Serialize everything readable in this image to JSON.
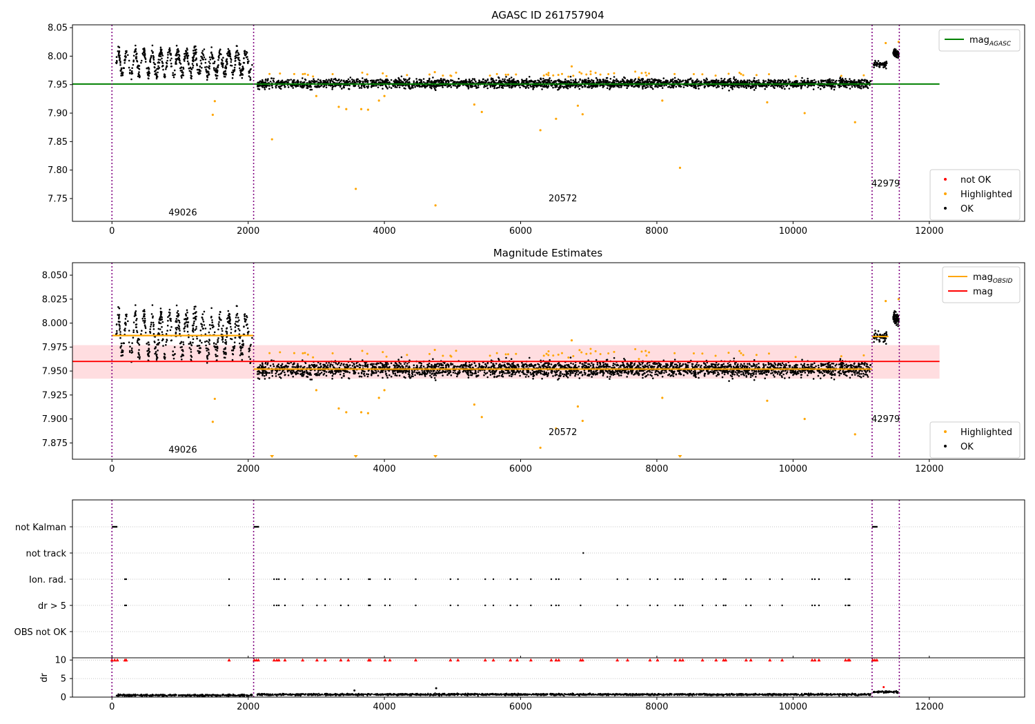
{
  "figure": {
    "background": "#ffffff"
  },
  "colors": {
    "ok": "#000000",
    "highlighted": "#ffa500",
    "not_ok": "#ff0000",
    "agasc_line": "#008000",
    "obsid_line": "#ffa500",
    "mean_line": "#ff0000",
    "band_fill": "#ffdde0",
    "obsid_divider": "#800080",
    "grid": "#b0b0b0"
  },
  "x_axis": {
    "range": [
      -580,
      13400
    ],
    "ticks": [
      0,
      2000,
      4000,
      6000,
      8000,
      10000,
      12000
    ],
    "tick_labels": [
      "0",
      "2000",
      "4000",
      "6000",
      "8000",
      "10000",
      "12000"
    ]
  },
  "obsid_boundaries": [
    0,
    2080,
    11160,
    11560
  ],
  "obsid_labels": [
    {
      "text": "49026",
      "x": 1040,
      "y_top": 7.72,
      "y_mid": 7.865
    },
    {
      "text": "20572",
      "x": 6620,
      "y_top": 7.745,
      "y_mid": 7.883
    },
    {
      "text": "42979",
      "x": 11360,
      "y_top": 7.771,
      "y_mid": 7.897
    }
  ],
  "chart_data": [
    {
      "type": "scatter",
      "title": "AGASC ID 261757904",
      "xlabel": "",
      "ylabel": "",
      "ylim": [
        7.71,
        8.055
      ],
      "y_ticks": [
        7.75,
        7.8,
        7.85,
        7.9,
        7.95,
        8.0,
        8.05
      ],
      "y_tick_labels": [
        "7.75",
        "7.80",
        "7.85",
        "7.90",
        "7.95",
        "8.00",
        "8.05"
      ],
      "grid": false,
      "legend_upper": {
        "placement": "top-right",
        "entries": [
          {
            "label": "mag",
            "subscript": "AGASC",
            "kind": "line",
            "color": "#008000"
          }
        ]
      },
      "legend_lower": {
        "placement": "bottom-right",
        "entries": [
          {
            "label": "not OK",
            "kind": "dot",
            "color": "#ff0000"
          },
          {
            "label": "Highlighted",
            "kind": "dot",
            "color": "#ffa500"
          },
          {
            "label": "OK",
            "kind": "dot",
            "color": "#000000"
          }
        ]
      },
      "hlines": [
        {
          "y": 7.951,
          "x_range": [
            -580,
            12150
          ],
          "color": "#008000",
          "series": "mag_AGASC"
        }
      ],
      "segments": [
        {
          "x_range": [
            60,
            2060
          ],
          "mean": 7.988,
          "amplitude": 0.02,
          "periods": 16,
          "noise": 0.012
        },
        {
          "x_range": [
            2130,
            11140
          ],
          "mean": 7.952,
          "amplitude": 0.0,
          "periods": 0,
          "noise": 0.008
        },
        {
          "x_range": [
            11180,
            11380
          ],
          "mean": 7.985,
          "amplitude": 0.0,
          "periods": 0,
          "noise": 0.006
        }
      ],
      "highlighted_points": [
        [
          1480,
          7.897
        ],
        [
          1510,
          7.921
        ],
        [
          2350,
          7.854
        ],
        [
          3000,
          7.93
        ],
        [
          3330,
          7.911
        ],
        [
          3440,
          7.907
        ],
        [
          3580,
          7.767
        ],
        [
          3660,
          7.907
        ],
        [
          3760,
          7.906
        ],
        [
          3920,
          7.922
        ],
        [
          4000,
          7.93
        ],
        [
          4750,
          7.738
        ],
        [
          4740,
          7.972
        ],
        [
          5320,
          7.915
        ],
        [
          5430,
          7.902
        ],
        [
          6290,
          7.87
        ],
        [
          6520,
          7.89
        ],
        [
          6840,
          7.913
        ],
        [
          6910,
          7.898
        ],
        [
          8080,
          7.922
        ],
        [
          8340,
          7.804
        ],
        [
          9620,
          7.919
        ],
        [
          10170,
          7.9
        ],
        [
          10910,
          7.884
        ],
        [
          11550,
          8.025
        ],
        [
          11360,
          8.023
        ],
        [
          6750,
          7.982
        ]
      ]
    },
    {
      "type": "scatter",
      "title": "Magnitude Estimates",
      "xlabel": "",
      "ylabel": "",
      "ylim": [
        7.858,
        8.063
      ],
      "y_ticks": [
        7.875,
        7.9,
        7.925,
        7.95,
        7.975,
        8.0,
        8.025,
        8.05
      ],
      "y_tick_labels": [
        "7.875",
        "7.900",
        "7.925",
        "7.950",
        "7.975",
        "8.000",
        "8.025",
        "8.050"
      ],
      "grid": false,
      "legend_upper": {
        "placement": "top-right",
        "entries": [
          {
            "label": "mag",
            "subscript": "OBSID",
            "kind": "line",
            "color": "#ffa500"
          },
          {
            "label": "mag",
            "kind": "line",
            "color": "#ff0000"
          }
        ]
      },
      "legend_lower": {
        "placement": "bottom-right",
        "entries": [
          {
            "label": "Highlighted",
            "kind": "dot",
            "color": "#ffa500"
          },
          {
            "label": "OK",
            "kind": "dot",
            "color": "#000000"
          }
        ]
      },
      "band": {
        "y_range": [
          7.942,
          7.977
        ],
        "x_range": [
          -580,
          12150
        ]
      },
      "mean_line": {
        "y": 7.96,
        "x_range": [
          -580,
          12150
        ]
      },
      "obsid_means": [
        {
          "x_range": [
            0,
            2080
          ],
          "y": 7.987
        },
        {
          "x_range": [
            2080,
            11160
          ],
          "y": 7.952
        },
        {
          "x_range": [
            11160,
            11400
          ],
          "y": 7.986
        }
      ],
      "off_scale_markers": [
        2350,
        3580,
        4750,
        8340
      ]
    },
    {
      "type": "scatter",
      "title": "",
      "categories": [
        "not Kalman",
        "not track",
        "Ion. rad.",
        "dr > 5",
        "OBS not OK"
      ],
      "grid": true,
      "flag_events": {
        "not Kalman": [
          [
            0,
            80
          ],
          [
            2080,
            2160
          ],
          [
            11160,
            11240
          ]
        ],
        "not track": [
          [
            6910,
            6930
          ]
        ],
        "Ion. rad.": [
          190,
          210,
          1720,
          2380,
          2420,
          2450,
          2540,
          2800,
          3010,
          3130,
          3360,
          3470,
          3770,
          3790,
          4010,
          4080,
          4460,
          4970,
          5080,
          5480,
          5600,
          5850,
          5950,
          6150,
          6450,
          6520,
          6560,
          6880,
          7420,
          7570,
          7900,
          8010,
          8270,
          8340,
          8380,
          8670,
          8870,
          8980,
          9010,
          9310,
          9380,
          9660,
          9840,
          10280,
          10320,
          10380,
          10770,
          10810,
          10830
        ],
        "dr > 5": [
          190,
          210,
          1720,
          2380,
          2420,
          2450,
          2540,
          2800,
          3010,
          3130,
          3360,
          3470,
          3770,
          3790,
          4010,
          4080,
          4460,
          4970,
          5080,
          5480,
          5600,
          5850,
          5950,
          6150,
          6450,
          6520,
          6560,
          6880,
          7420,
          7570,
          7900,
          8010,
          8270,
          8340,
          8380,
          8670,
          8870,
          8980,
          9010,
          9310,
          9380,
          9660,
          9840,
          10280,
          10320,
          10380,
          10770,
          10810,
          10830
        ],
        "OBS not OK": []
      }
    },
    {
      "type": "scatter",
      "title": "",
      "ylabel": "dr",
      "ylim": [
        0,
        10.6
      ],
      "y_ticks": [
        0,
        5,
        10
      ],
      "y_tick_labels": [
        "0",
        "5",
        "10"
      ],
      "grid": true,
      "clipped_markers_at": 10,
      "baseline": {
        "segments": [
          [
            60,
            2060,
            0.5
          ],
          [
            2130,
            11140,
            0.7
          ],
          [
            11180,
            11540,
            1.4
          ]
        ],
        "spikes": [
          [
            3560,
            1.8
          ],
          [
            4760,
            2.4
          ],
          [
            11330,
            2.7
          ]
        ]
      }
    }
  ]
}
